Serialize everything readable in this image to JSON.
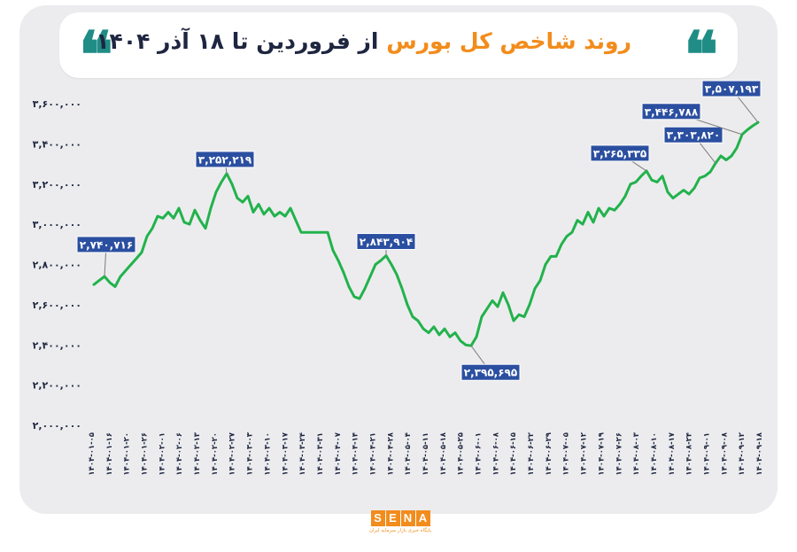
{
  "header": {
    "title_orange": "روند شاخص کل بورس",
    "title_dark": "از فروردین تا ۱۸ آذر ۱۴۰۴",
    "quote_glyph": "❝"
  },
  "logo": {
    "word": [
      "S",
      "E",
      "N",
      "A"
    ],
    "subtitle": "پایگاه خبری بازار سرمایه ایران",
    "color": "#f28c1c"
  },
  "colors": {
    "line": "#22b24c",
    "callout": "#2b4fa0",
    "accent": "#f28c1c",
    "teal": "#1f8d86"
  },
  "chart_data": {
    "type": "line",
    "title": "روند شاخص کل بورس از فروردین تا ۱۸ آذر ۱۴۰۴",
    "xlabel": "",
    "ylabel": "",
    "ylim": [
      2000000,
      3600000
    ],
    "yticks": [
      "۲,۰۰۰,۰۰۰",
      "۲,۲۰۰,۰۰۰",
      "۲,۴۰۰,۰۰۰",
      "۲,۶۰۰,۰۰۰",
      "۲,۸۰۰,۰۰۰",
      "۳,۰۰۰,۰۰۰",
      "۳,۲۰۰,۰۰۰",
      "۳,۴۰۰,۰۰۰",
      "۳,۶۰۰,۰۰۰"
    ],
    "grid": false,
    "x_tick_labels": [
      "۱۴۰۴-۰۱-۰۵",
      "۱۴۰۴-۰۱-۱۶",
      "۱۴۰۴-۰۱-۲۰",
      "۱۴۰۴-۰۱-۲۶",
      "۱۴۰۴-۰۲-۰۱",
      "۱۴۰۴-۰۲-۰۶",
      "۱۴۰۴-۰۲-۱۳",
      "۱۴۰۴-۰۲-۲۰",
      "۱۴۰۴-۰۲-۲۷",
      "۱۴۰۴-۰۳-۰۳",
      "۱۴۰۴-۰۳-۱۰",
      "۱۴۰۴-۰۳-۱۷",
      "۱۴۰۴-۰۳-۲۴",
      "۱۴۰۴-۰۳-۳۱",
      "۱۴۰۴-۰۴-۰۷",
      "۱۴۰۴-۰۴-۱۴",
      "۱۴۰۴-۰۴-۲۱",
      "۱۴۰۴-۰۴-۲۸",
      "۱۴۰۴-۰۵-۰۴",
      "۱۴۰۴-۰۵-۱۱",
      "۱۴۰۴-۰۵-۱۸",
      "۱۴۰۴-۰۵-۲۵",
      "۱۴۰۴-۰۶-۰۱",
      "۱۴۰۴-۰۶-۰۸",
      "۱۴۰۴-۰۶-۱۵",
      "۱۴۰۴-۰۶-۲۲",
      "۱۴۰۴-۰۶-۲۹",
      "۱۴۰۴-۰۷-۰۵",
      "۱۴۰۴-۰۷-۱۲",
      "۱۴۰۴-۰۷-۱۹",
      "۱۴۰۴-۰۷-۲۶",
      "۱۴۰۴-۰۸-۰۳",
      "۱۴۰۴-۰۸-۱۰",
      "۱۴۰۴-۰۸-۱۷",
      "۱۴۰۴-۰۸-۲۴",
      "۱۴۰۴-۰۹-۰۱",
      "۱۴۰۴-۰۹-۰۸",
      "۱۴۰۴-۰۹-۱۲",
      "۱۴۰۴-۰۹-۱۸"
    ],
    "values": [
      2700000,
      2720000,
      2740716,
      2710000,
      2690000,
      2740000,
      2770000,
      2800000,
      2830000,
      2860000,
      2940000,
      2980000,
      3040000,
      3030000,
      3060000,
      3030000,
      3080000,
      3010000,
      3000000,
      3070000,
      3020000,
      2980000,
      3080000,
      3160000,
      3210000,
      3252219,
      3200000,
      3130000,
      3110000,
      3140000,
      3060000,
      3100000,
      3050000,
      3080000,
      3040000,
      3060000,
      3040000,
      3080000,
      3020000,
      2960000,
      2960000,
      2960000,
      2960000,
      2960000,
      2960000,
      2870000,
      2820000,
      2760000,
      2690000,
      2640000,
      2630000,
      2680000,
      2740000,
      2800000,
      2820000,
      2843904,
      2800000,
      2750000,
      2680000,
      2600000,
      2540000,
      2520000,
      2480000,
      2460000,
      2490000,
      2450000,
      2480000,
      2440000,
      2460000,
      2420000,
      2400000,
      2395695,
      2440000,
      2540000,
      2580000,
      2620000,
      2590000,
      2660000,
      2600000,
      2520000,
      2550000,
      2540000,
      2600000,
      2680000,
      2720000,
      2800000,
      2840000,
      2840000,
      2900000,
      2940000,
      2960000,
      3020000,
      3000000,
      3060000,
      3010000,
      3080000,
      3040000,
      3080000,
      3070000,
      3100000,
      3140000,
      3200000,
      3210000,
      3240000,
      3265335,
      3220000,
      3210000,
      3240000,
      3160000,
      3130000,
      3150000,
      3170000,
      3150000,
      3180000,
      3230000,
      3240000,
      3260000,
      3303820,
      3340000,
      3320000,
      3340000,
      3380000,
      3446788,
      3470000,
      3490000,
      3507193
    ],
    "annotations": [
      {
        "label": "۲,۷۴۰,۷۱۶",
        "value": 2740716,
        "index": 2
      },
      {
        "label": "۳,۲۵۲,۲۱۹",
        "value": 3252219,
        "index": 25
      },
      {
        "label": "۲,۸۴۳,۹۰۴",
        "value": 2843904,
        "index": 55
      },
      {
        "label": "۲,۳۹۵,۶۹۵",
        "value": 2395695,
        "index": 71
      },
      {
        "label": "۳,۲۶۵,۳۳۵",
        "value": 3265335,
        "index": 104
      },
      {
        "label": "۳,۳۰۳,۸۲۰",
        "value": 3303820,
        "index": 117
      },
      {
        "label": "۳,۴۴۶,۷۸۸",
        "value": 3446788,
        "index": 122
      },
      {
        "label": "۳,۵۰۷,۱۹۳",
        "value": 3507193,
        "index": 125
      }
    ]
  }
}
